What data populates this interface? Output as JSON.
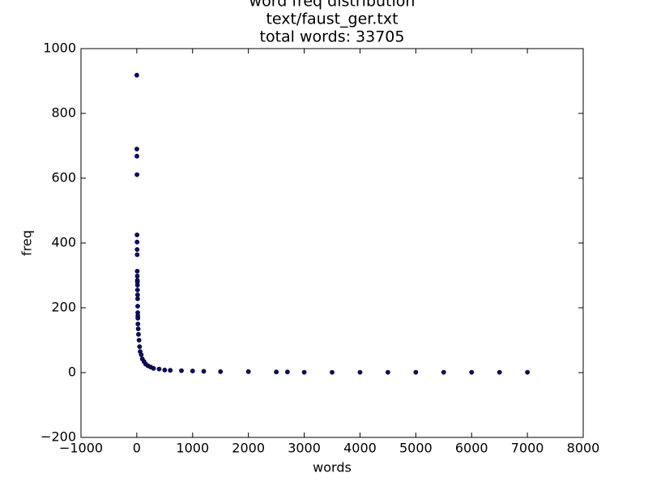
{
  "chart_data": {
    "type": "scatter",
    "title_lines": [
      "word freq distribution",
      "text/faust_ger.txt",
      "total words: 33705"
    ],
    "xlabel": "words",
    "ylabel": "freq",
    "color": "#0a0a78",
    "xlim": [
      -1000,
      8000
    ],
    "ylim": [
      -200,
      1000
    ],
    "xticks": [
      {
        "value": -1000,
        "label": "−1000"
      },
      0,
      1000,
      2000,
      3000,
      4000,
      5000,
      6000,
      7000,
      8000
    ],
    "yticks": [
      {
        "value": -200,
        "label": "−200"
      },
      0,
      200,
      400,
      600,
      800,
      1000
    ],
    "x": [
      0,
      1,
      2,
      3,
      4,
      5,
      6,
      7,
      8,
      9,
      10,
      11,
      12,
      13,
      14,
      15,
      16,
      17,
      18,
      19,
      20,
      25,
      30,
      40,
      50,
      60,
      80,
      100,
      130,
      160,
      200,
      250,
      300,
      400,
      500,
      600,
      800,
      1000,
      1200,
      1500,
      2000,
      2500,
      2700,
      3000,
      3500,
      4000,
      4500,
      5000,
      5500,
      6000,
      6500,
      7000
    ],
    "values": [
      918,
      690,
      668,
      611,
      425,
      403,
      380,
      364,
      313,
      298,
      285,
      280,
      270,
      255,
      240,
      228,
      205,
      185,
      175,
      168,
      150,
      135,
      118,
      100,
      80,
      65,
      55,
      42,
      34,
      26,
      21,
      17,
      13,
      11,
      8,
      7,
      6,
      5,
      4,
      3,
      3,
      2,
      2,
      1,
      1,
      1,
      1,
      1,
      1,
      1,
      1,
      1
    ]
  }
}
